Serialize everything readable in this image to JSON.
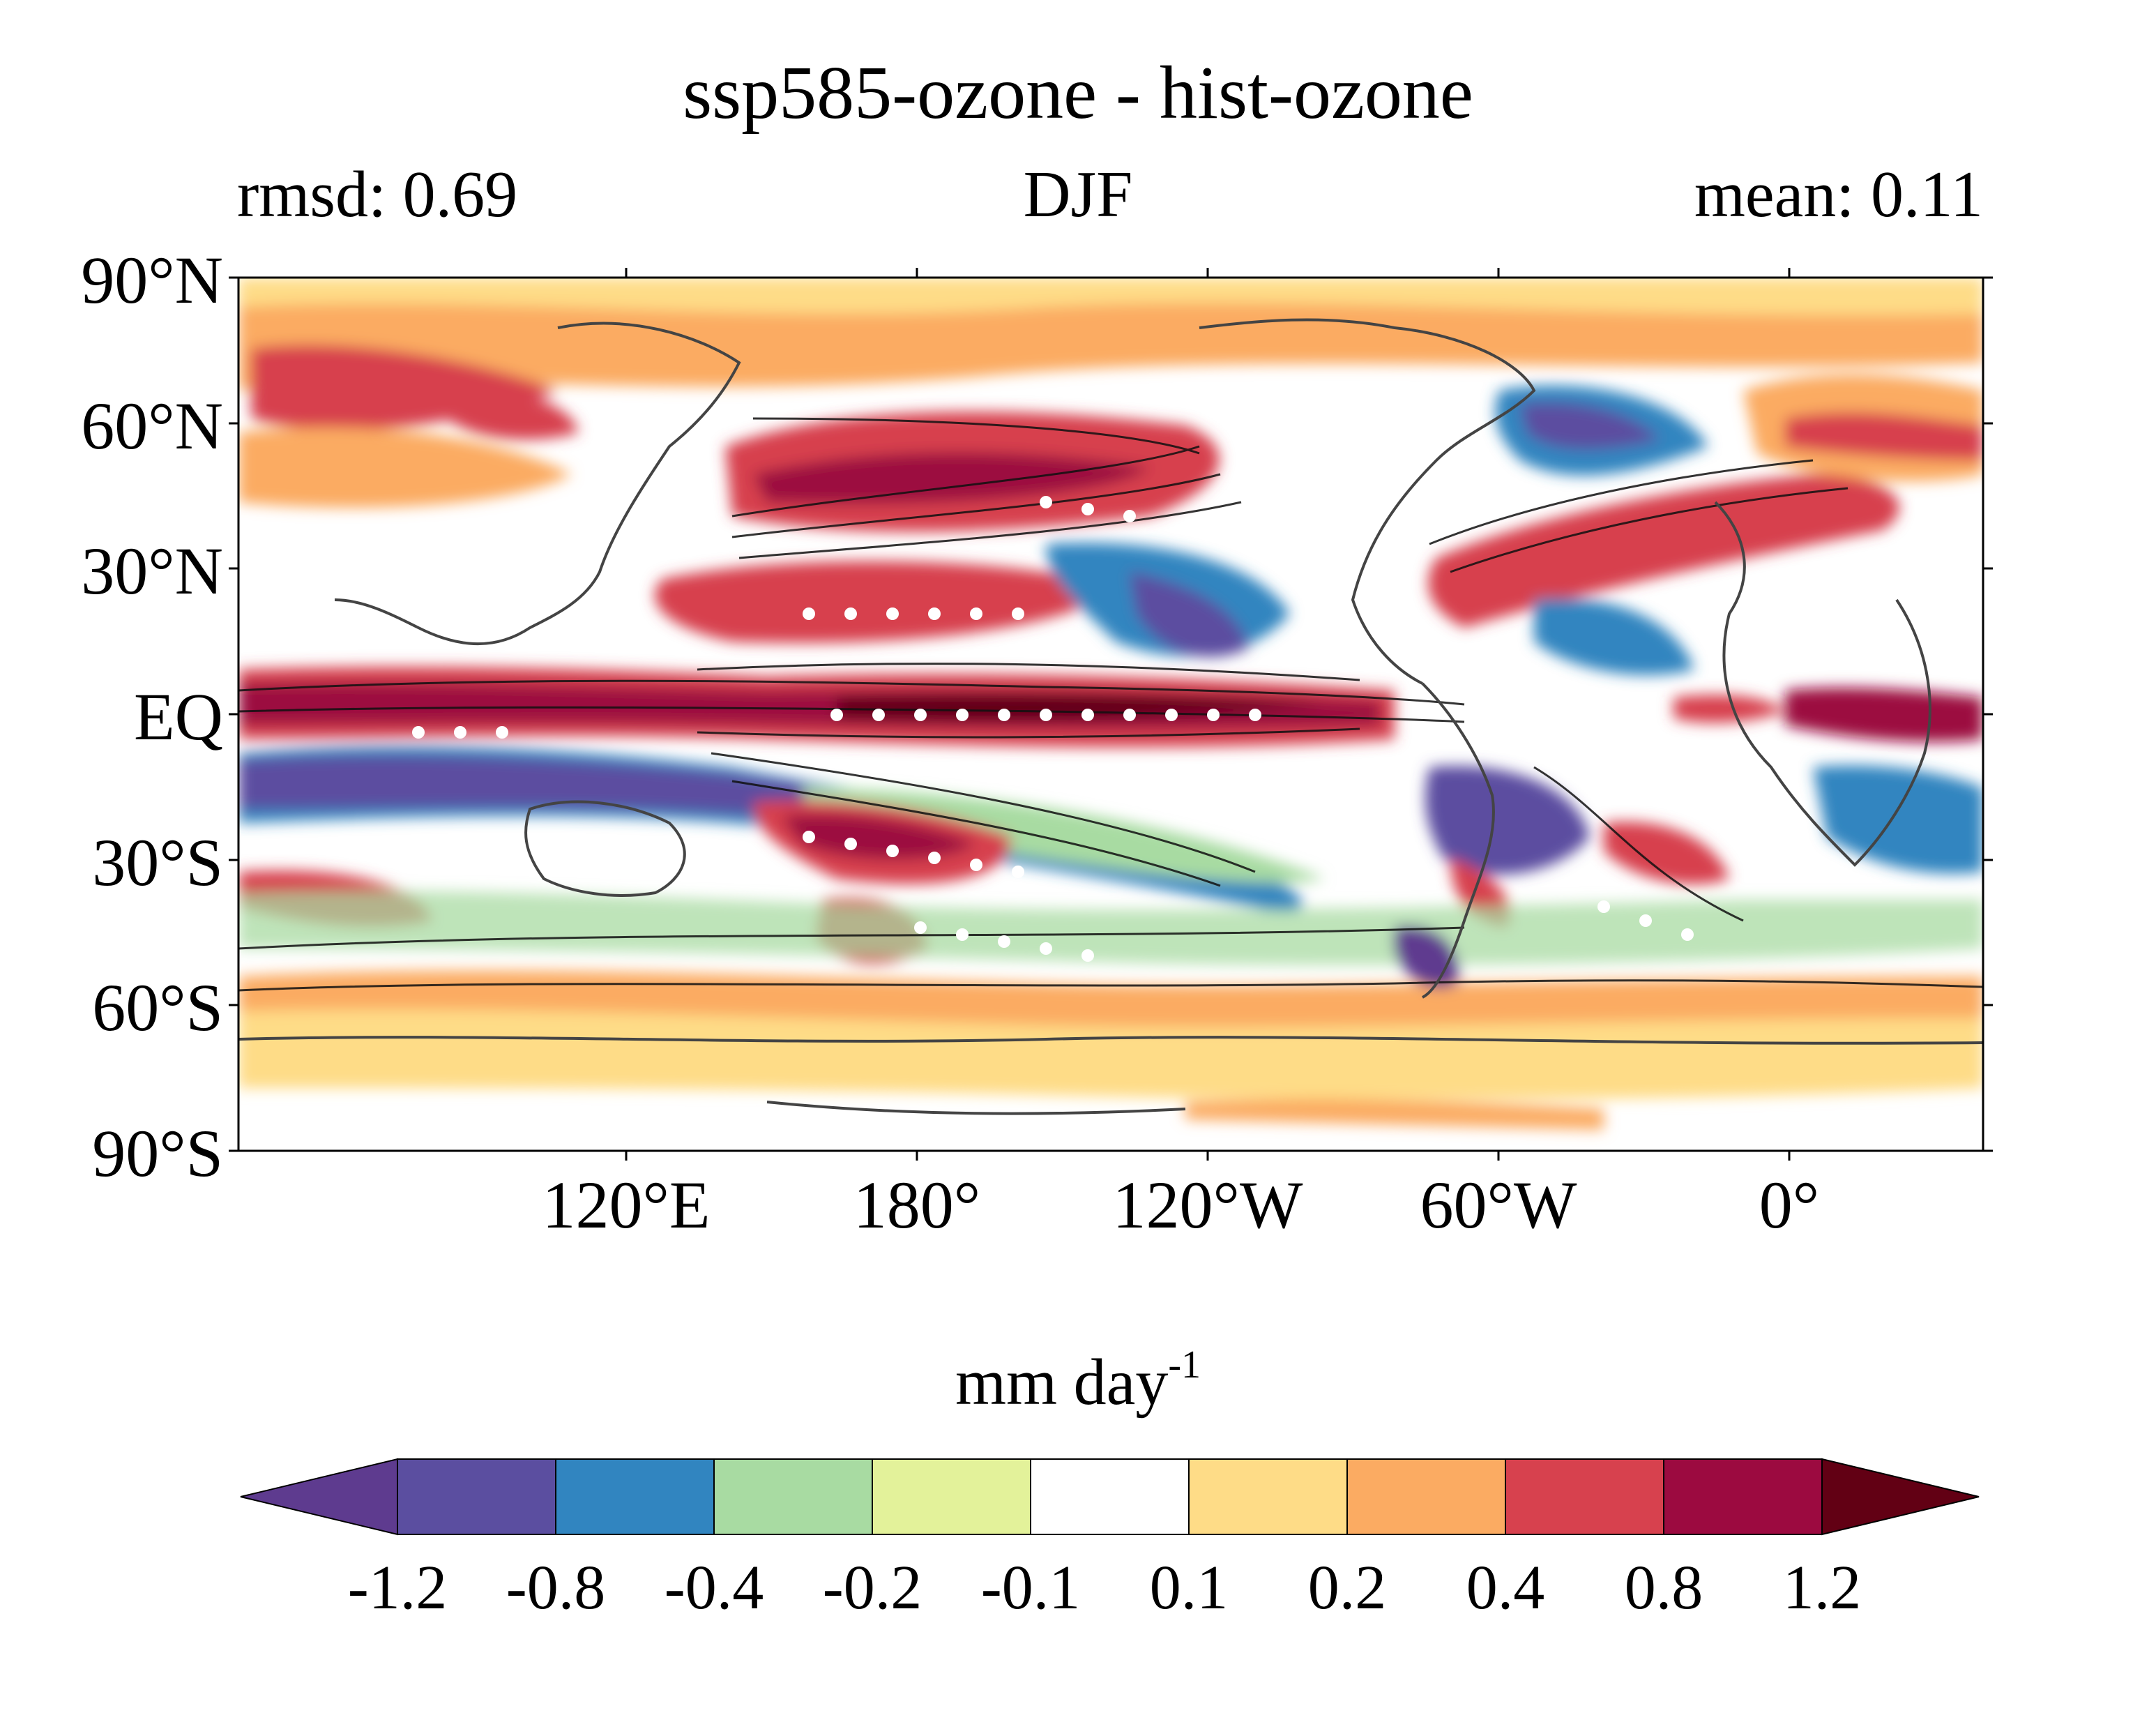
{
  "title": "ssp585-ozone - hist-ozone",
  "subtitle_left": "rmsd: 0.69",
  "subtitle_center": "DJF",
  "subtitle_right": "mean: 0.11",
  "lat_labels": [
    "90°N",
    "60°N",
    "30°N",
    "EQ",
    "30°S",
    "60°S",
    "90°S"
  ],
  "lon_labels": [
    "120°E",
    "180°",
    "120°W",
    "60°W",
    "0°"
  ],
  "colorbar": {
    "title": "mm day",
    "title_superscript": "-1",
    "ticks": [
      "-1.2",
      "-0.8",
      "-0.4",
      "-0.2",
      "-0.1",
      "0.1",
      "0.2",
      "0.4",
      "0.8",
      "1.2"
    ],
    "colors": [
      "#5e3b8f",
      "#5b4ea0",
      "#3185c0",
      "#a8dba2",
      "#e3f29a",
      "#ffffff",
      "#fedc87",
      "#fbab62",
      "#d7414e",
      "#9c0a40",
      "#620014"
    ]
  },
  "map": {
    "projection": "cylindrical-equidistant",
    "field": "precipitation difference",
    "stippling": "white dots mark significant regions",
    "contours": "black climatology contours"
  }
}
